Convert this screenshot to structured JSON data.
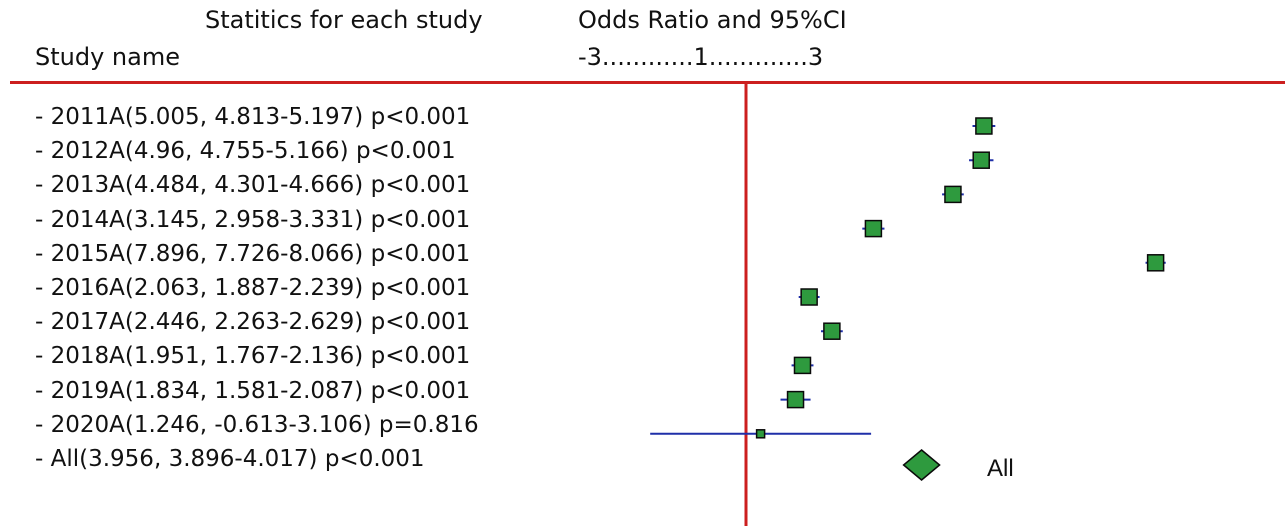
{
  "header": {
    "stats_title": "Statitics for each study",
    "study_col": "Study name",
    "or_title": "Odds Ratio and 95%CI",
    "scale_label": "-3............1.............3"
  },
  "colors": {
    "rule": "#cc1f1f",
    "ci_line": "#1f2fa8",
    "marker_fill": "#2e9a3e",
    "marker_edge": "#0a0a0a"
  },
  "chart_data": {
    "type": "forest",
    "xlabel": "Odds Ratio and 95%CI",
    "reference_line": 1,
    "studies": [
      {
        "label": "- 2011A(5.005, 4.813-5.197) p<0.001",
        "name": "2011A",
        "or": 5.005,
        "lower": 4.813,
        "upper": 5.197,
        "p": "p<0.001"
      },
      {
        "label": "- 2012A(4.96, 4.755-5.166) p<0.001",
        "name": "2012A",
        "or": 4.96,
        "lower": 4.755,
        "upper": 5.166,
        "p": "p<0.001"
      },
      {
        "label": "- 2013A(4.484, 4.301-4.666) p<0.001",
        "name": "2013A",
        "or": 4.484,
        "lower": 4.301,
        "upper": 4.666,
        "p": "p<0.001"
      },
      {
        "label": "- 2014A(3.145, 2.958-3.331) p<0.001",
        "name": "2014A",
        "or": 3.145,
        "lower": 2.958,
        "upper": 3.331,
        "p": "p<0.001"
      },
      {
        "label": "- 2015A(7.896, 7.726-8.066) p<0.001",
        "name": "2015A",
        "or": 7.896,
        "lower": 7.726,
        "upper": 8.066,
        "p": "p<0.001"
      },
      {
        "label": "- 2016A(2.063, 1.887-2.239) p<0.001",
        "name": "2016A",
        "or": 2.063,
        "lower": 1.887,
        "upper": 2.239,
        "p": "p<0.001"
      },
      {
        "label": "- 2017A(2.446, 2.263-2.629) p<0.001",
        "name": "2017A",
        "or": 2.446,
        "lower": 2.263,
        "upper": 2.629,
        "p": "p<0.001"
      },
      {
        "label": "- 2018A(1.951, 1.767-2.136) p<0.001",
        "name": "2018A",
        "or": 1.951,
        "lower": 1.767,
        "upper": 2.136,
        "p": "p<0.001"
      },
      {
        "label": "- 2019A(1.834, 1.581-2.087) p<0.001",
        "name": "2019A",
        "or": 1.834,
        "lower": 1.581,
        "upper": 2.087,
        "p": "p<0.001"
      },
      {
        "label": "- 2020A(1.246, -0.613-3.106) p=0.816",
        "name": "2020A",
        "or": 1.246,
        "lower": -0.613,
        "upper": 3.106,
        "p": "p=0.816"
      }
    ],
    "summary": {
      "label": "- All(3.956, 3.896-4.017) p<0.001",
      "name": "All",
      "or": 3.956,
      "lower": 3.896,
      "upper": 4.017,
      "p": "p<0.001",
      "marker_text": "All"
    }
  }
}
